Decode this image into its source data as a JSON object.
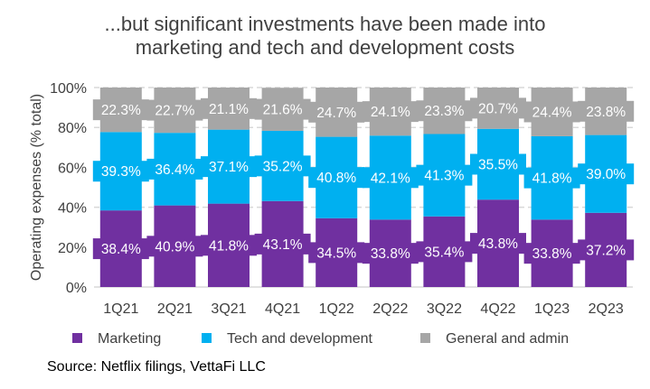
{
  "title": {
    "line1": "...but significant investments have been made into",
    "line2": "marketing and tech and development costs"
  },
  "source": "Source: Netflix filings, VettaFi LLC",
  "colors": {
    "marketing": "#7030A0",
    "tech": "#00B0F0",
    "gna": "#A6A6A6",
    "grid": "#D9D9D9",
    "text": "#404040",
    "label": "#ffffff"
  },
  "chart_data": {
    "type": "bar",
    "stacked": true,
    "title": "...but significant investments have been made into marketing and tech and development costs",
    "xlabel": "",
    "ylabel": "Operating expenses (% total)",
    "ylim": [
      0,
      100
    ],
    "y_ticks": [
      "0%",
      "20%",
      "40%",
      "60%",
      "80%",
      "100%"
    ],
    "y_tick_values": [
      0,
      20,
      40,
      60,
      80,
      100
    ],
    "grid": true,
    "legend_position": "bottom",
    "categories": [
      "1Q21",
      "2Q21",
      "3Q21",
      "4Q21",
      "1Q22",
      "2Q22",
      "3Q22",
      "4Q22",
      "1Q23",
      "2Q23"
    ],
    "series": [
      {
        "name": "Marketing",
        "key": "marketing",
        "values": [
          38.4,
          40.9,
          41.8,
          43.1,
          34.5,
          33.8,
          35.4,
          43.8,
          33.8,
          37.2
        ],
        "labels": [
          "38.4%",
          "40.9%",
          "41.8%",
          "43.1%",
          "34.5%",
          "33.8%",
          "35.4%",
          "43.8%",
          "33.8%",
          "37.2%"
        ]
      },
      {
        "name": "Tech and development",
        "key": "tech",
        "values": [
          39.3,
          36.4,
          37.1,
          35.2,
          40.8,
          42.1,
          41.3,
          35.5,
          41.8,
          39.0
        ],
        "labels": [
          "39.3%",
          "36.4%",
          "37.1%",
          "35.2%",
          "40.8%",
          "42.1%",
          "41.3%",
          "35.5%",
          "41.8%",
          "39.0%"
        ]
      },
      {
        "name": "General and admin",
        "key": "gna",
        "values": [
          22.3,
          22.7,
          21.1,
          21.6,
          24.7,
          24.1,
          23.3,
          20.7,
          24.4,
          23.8
        ],
        "labels": [
          "22.3%",
          "22.7%",
          "21.1%",
          "21.6%",
          "24.7%",
          "24.1%",
          "23.3%",
          "20.7%",
          "24.4%",
          "23.8%"
        ]
      }
    ]
  }
}
